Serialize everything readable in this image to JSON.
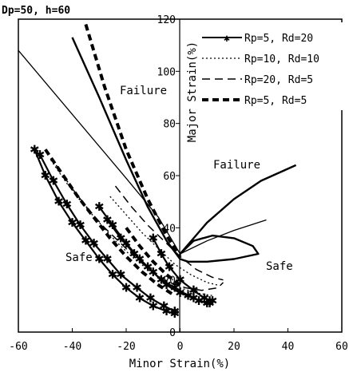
{
  "chart_data": {
    "type": "line",
    "title": "Dp=50, h=60",
    "xlabel": "Minor Strain(%)",
    "ylabel": "Major Strain(%)",
    "xlim": [
      -60,
      60
    ],
    "ylim": [
      0,
      120
    ],
    "x_ticks": [
      "-60",
      "-40",
      "-20",
      "0",
      "20",
      "40",
      "60"
    ],
    "y_ticks": [
      "0",
      "20",
      "40",
      "60",
      "80",
      "100",
      "120"
    ],
    "annotations": [
      "Failure",
      "Failure",
      "Safe",
      "Safe"
    ],
    "legend_position": "top-right",
    "limit_curves": [
      {
        "style": "thin-solid",
        "points": [
          [
            -60,
            108
          ],
          [
            -20,
            59
          ],
          [
            -8,
            44
          ],
          [
            0,
            30
          ]
        ]
      },
      {
        "style": "thick-solid",
        "points": [
          [
            -40,
            113
          ],
          [
            -30,
            90
          ],
          [
            -20,
            66
          ],
          [
            -12,
            48
          ],
          [
            -5,
            35
          ],
          [
            0,
            28
          ]
        ]
      },
      {
        "style": "thick-dashed",
        "points": [
          [
            -35,
            118
          ],
          [
            -28,
            94
          ],
          [
            -20,
            70
          ],
          [
            -12,
            51
          ],
          [
            -5,
            37
          ],
          [
            0,
            29
          ]
        ]
      },
      {
        "style": "thick-solid",
        "points": [
          [
            0,
            30
          ],
          [
            10,
            42
          ],
          [
            20,
            51
          ],
          [
            30,
            58
          ],
          [
            43,
            64
          ]
        ]
      },
      {
        "style": "thin-solid",
        "points": [
          [
            0,
            30
          ],
          [
            10,
            35
          ],
          [
            20,
            39
          ],
          [
            32,
            43
          ]
        ]
      },
      {
        "style": "thick-solid",
        "points": [
          [
            0,
            30
          ],
          [
            5,
            35
          ],
          [
            12,
            37
          ],
          [
            20,
            36
          ],
          [
            27,
            33
          ],
          [
            29,
            30
          ],
          [
            20,
            28
          ],
          [
            10,
            27
          ],
          [
            3,
            27
          ],
          [
            0,
            28
          ]
        ]
      }
    ],
    "series": [
      {
        "name": "Rp=5, Rd=20",
        "style": "solid-star",
        "values": [
          [
            -54,
            70
          ],
          [
            -50,
            60
          ],
          [
            -45,
            50
          ],
          [
            -40,
            42
          ],
          [
            -35,
            35
          ],
          [
            -30,
            28
          ],
          [
            -25,
            22
          ],
          [
            -20,
            17
          ],
          [
            -15,
            13
          ],
          [
            -10,
            10
          ],
          [
            -5,
            8
          ],
          [
            -2,
            7
          ]
        ]
      },
      {
        "name": "Rp=5, Rd=20",
        "style": "solid-star",
        "values": [
          [
            -52,
            68
          ],
          [
            -47,
            58
          ],
          [
            -42,
            49
          ],
          [
            -37,
            41
          ],
          [
            -32,
            34
          ],
          [
            -27,
            28
          ],
          [
            -22,
            22
          ],
          [
            -16,
            17
          ],
          [
            -11,
            13
          ],
          [
            -6,
            10
          ],
          [
            -2,
            8
          ]
        ]
      },
      {
        "name": "Rp=5, Rd=20",
        "style": "solid-star",
        "values": [
          [
            -30,
            48
          ],
          [
            -25,
            41
          ],
          [
            -20,
            34
          ],
          [
            -15,
            28
          ],
          [
            -10,
            23
          ],
          [
            -5,
            18
          ],
          [
            0,
            15
          ],
          [
            5,
            13
          ],
          [
            10,
            11
          ],
          [
            12,
            12
          ]
        ]
      },
      {
        "name": "Rp=5, Rd=20",
        "style": "solid-star",
        "values": [
          [
            -27,
            43
          ],
          [
            -22,
            36
          ],
          [
            -17,
            30
          ],
          [
            -12,
            25
          ],
          [
            -7,
            20
          ],
          [
            -2,
            17
          ],
          [
            3,
            14
          ],
          [
            7,
            12
          ],
          [
            11,
            11
          ]
        ]
      },
      {
        "name": "Rp=5, Rd=20",
        "style": "solid-star",
        "values": [
          [
            -10,
            36
          ],
          [
            -7,
            30
          ],
          [
            -4,
            25
          ],
          [
            0,
            20
          ],
          [
            5,
            16
          ],
          [
            9,
            13
          ],
          [
            11,
            12
          ]
        ]
      },
      {
        "name": "Rp=10, Rd=10",
        "style": "dotted",
        "values": [
          [
            -48,
            66
          ],
          [
            -42,
            57
          ],
          [
            -36,
            49
          ],
          [
            -30,
            42
          ],
          [
            -24,
            35
          ],
          [
            -18,
            29
          ],
          [
            -12,
            24
          ],
          [
            -6,
            20
          ],
          [
            0,
            17
          ],
          [
            6,
            15
          ],
          [
            12,
            14
          ]
        ]
      },
      {
        "name": "Rp=10, Rd=10",
        "style": "dotted",
        "values": [
          [
            -26,
            52
          ],
          [
            -20,
            45
          ],
          [
            -14,
            38
          ],
          [
            -8,
            32
          ],
          [
            -2,
            26
          ],
          [
            4,
            22
          ],
          [
            10,
            19
          ],
          [
            14,
            18
          ]
        ]
      },
      {
        "name": "Rp=20, Rd=5",
        "style": "dashed",
        "values": [
          [
            -46,
            64
          ],
          [
            -40,
            55
          ],
          [
            -34,
            47
          ],
          [
            -28,
            40
          ],
          [
            -22,
            34
          ],
          [
            -16,
            28
          ],
          [
            -10,
            23
          ],
          [
            -4,
            19
          ],
          [
            2,
            17
          ],
          [
            8,
            16
          ],
          [
            14,
            17
          ],
          [
            16,
            19
          ]
        ]
      },
      {
        "name": "Rp=20, Rd=5",
        "style": "dashed",
        "values": [
          [
            -24,
            56
          ],
          [
            -18,
            48
          ],
          [
            -12,
            41
          ],
          [
            -6,
            35
          ],
          [
            0,
            29
          ],
          [
            6,
            24
          ],
          [
            12,
            21
          ],
          [
            16,
            20
          ]
        ]
      },
      {
        "name": "Rp=5, Rd=5",
        "style": "thick-dashed",
        "values": [
          [
            -50,
            70
          ],
          [
            -44,
            61
          ],
          [
            -38,
            52
          ],
          [
            -32,
            44
          ],
          [
            -26,
            36
          ],
          [
            -20,
            29
          ],
          [
            -14,
            23
          ],
          [
            -8,
            18
          ],
          [
            -2,
            14
          ]
        ]
      },
      {
        "name": "Rp=5, Rd=5",
        "style": "thick-dashed",
        "values": [
          [
            -20,
            40
          ],
          [
            -15,
            33
          ],
          [
            -10,
            27
          ],
          [
            -5,
            22
          ],
          [
            0,
            18
          ]
        ]
      }
    ]
  }
}
